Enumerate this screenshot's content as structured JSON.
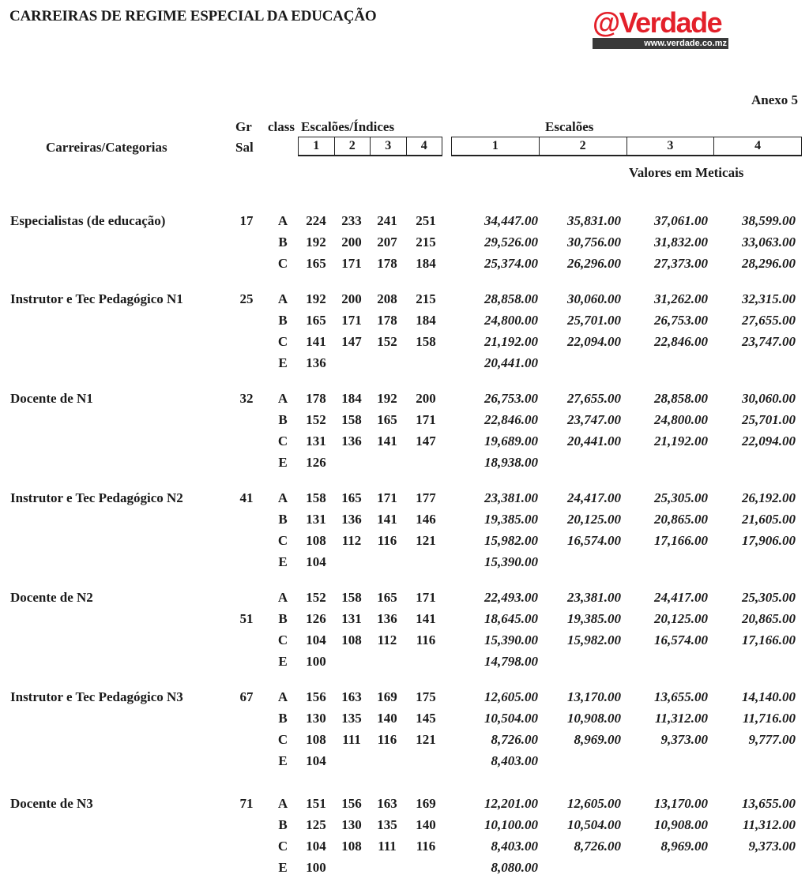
{
  "title": "CARREIRAS DE REGIME ESPECIAL DA EDUCAÇÃO",
  "logo": {
    "text": "@Verdade",
    "url": "www.verdade.co.mz"
  },
  "annex": "Anexo 5",
  "headers": {
    "category": "Carreiras/Categorias",
    "gr": "Gr",
    "sal": "Sal",
    "class": "class",
    "indices": "Escalões/Índices",
    "escaloes": "Escalões",
    "index_cols": [
      "1",
      "2",
      "3",
      "4"
    ],
    "value_cols": [
      "1",
      "2",
      "3",
      "4"
    ],
    "currency_note": "Valores em Meticais"
  },
  "groups": [
    {
      "name": "Especialistas (de educação)",
      "gr": "17",
      "gr_row": 0,
      "rows": [
        {
          "class": "A",
          "indices": [
            "224",
            "233",
            "241",
            "251"
          ],
          "values": [
            "34,447.00",
            "35,831.00",
            "37,061.00",
            "38,599.00"
          ]
        },
        {
          "class": "B",
          "indices": [
            "192",
            "200",
            "207",
            "215"
          ],
          "values": [
            "29,526.00",
            "30,756.00",
            "31,832.00",
            "33,063.00"
          ]
        },
        {
          "class": "C",
          "indices": [
            "165",
            "171",
            "178",
            "184"
          ],
          "values": [
            "25,374.00",
            "26,296.00",
            "27,373.00",
            "28,296.00"
          ]
        }
      ]
    },
    {
      "name": "Instrutor e Tec Pedagógico  N1",
      "gr": "25",
      "gr_row": 0,
      "rows": [
        {
          "class": "A",
          "indices": [
            "192",
            "200",
            "208",
            "215"
          ],
          "values": [
            "28,858.00",
            "30,060.00",
            "31,262.00",
            "32,315.00"
          ]
        },
        {
          "class": "B",
          "indices": [
            "165",
            "171",
            "178",
            "184"
          ],
          "values": [
            "24,800.00",
            "25,701.00",
            "26,753.00",
            "27,655.00"
          ]
        },
        {
          "class": "C",
          "indices": [
            "141",
            "147",
            "152",
            "158"
          ],
          "values": [
            "21,192.00",
            "22,094.00",
            "22,846.00",
            "23,747.00"
          ]
        },
        {
          "class": "E",
          "indices": [
            "136"
          ],
          "values": [
            "20,441.00"
          ]
        }
      ]
    },
    {
      "name": " Docente de N1",
      "gr": "32",
      "gr_row": 0,
      "rows": [
        {
          "class": "A",
          "indices": [
            "178",
            "184",
            "192",
            "200"
          ],
          "values": [
            "26,753.00",
            "27,655.00",
            "28,858.00",
            "30,060.00"
          ]
        },
        {
          "class": "B",
          "indices": [
            "152",
            "158",
            "165",
            "171"
          ],
          "values": [
            "22,846.00",
            "23,747.00",
            "24,800.00",
            "25,701.00"
          ]
        },
        {
          "class": "C",
          "indices": [
            "131",
            "136",
            "141",
            "147"
          ],
          "values": [
            "19,689.00",
            "20,441.00",
            "21,192.00",
            "22,094.00"
          ]
        },
        {
          "class": "E",
          "indices": [
            "126"
          ],
          "values": [
            "18,938.00"
          ]
        }
      ]
    },
    {
      "name": "Instrutor e Tec Pedagógico  N2",
      "gr": "41",
      "gr_row": 0,
      "rows": [
        {
          "class": "A",
          "indices": [
            "158",
            "165",
            "171",
            "177"
          ],
          "values": [
            "23,381.00",
            "24,417.00",
            "25,305.00",
            "26,192.00"
          ]
        },
        {
          "class": "B",
          "indices": [
            "131",
            "136",
            "141",
            "146"
          ],
          "values": [
            "19,385.00",
            "20,125.00",
            "20,865.00",
            "21,605.00"
          ]
        },
        {
          "class": "C",
          "indices": [
            "108",
            "112",
            "116",
            "121"
          ],
          "values": [
            "15,982.00",
            "16,574.00",
            "17,166.00",
            "17,906.00"
          ]
        },
        {
          "class": "E",
          "indices": [
            "104"
          ],
          "values": [
            "15,390.00"
          ]
        }
      ]
    },
    {
      "name": "Docente de N2",
      "gr": "51",
      "gr_row": 1,
      "rows": [
        {
          "class": "A",
          "indices": [
            "152",
            "158",
            "165",
            "171"
          ],
          "values": [
            "22,493.00",
            "23,381.00",
            "24,417.00",
            "25,305.00"
          ]
        },
        {
          "class": "B",
          "indices": [
            "126",
            "131",
            "136",
            "141"
          ],
          "values": [
            "18,645.00",
            "19,385.00",
            "20,125.00",
            "20,865.00"
          ]
        },
        {
          "class": "C",
          "indices": [
            "104",
            "108",
            "112",
            "116"
          ],
          "values": [
            "15,390.00",
            "15,982.00",
            "16,574.00",
            "17,166.00"
          ]
        },
        {
          "class": "E",
          "indices": [
            "100"
          ],
          "values": [
            "14,798.00"
          ]
        }
      ]
    },
    {
      "name": "Instrutor e Tec Pedagógico  N3",
      "gr": "67",
      "gr_row": 0,
      "rows": [
        {
          "class": "A",
          "indices": [
            "156",
            "163",
            "169",
            "175"
          ],
          "values": [
            "12,605.00",
            "13,170.00",
            "13,655.00",
            "14,140.00"
          ]
        },
        {
          "class": "B",
          "indices": [
            "130",
            "135",
            "140",
            "145"
          ],
          "values": [
            "10,504.00",
            "10,908.00",
            "11,312.00",
            "11,716.00"
          ]
        },
        {
          "class": "C",
          "indices": [
            "108",
            "111",
            "116",
            "121"
          ],
          "values": [
            "8,726.00",
            "8,969.00",
            "9,373.00",
            "9,777.00"
          ]
        },
        {
          "class": "E",
          "indices": [
            "104"
          ],
          "values": [
            "8,403.00"
          ]
        }
      ]
    },
    {
      "name": "Docente de N3",
      "gr": "71",
      "gr_row": 0,
      "rows": [
        {
          "class": "A",
          "indices": [
            "151",
            "156",
            "163",
            "169"
          ],
          "values": [
            "12,201.00",
            "12,605.00",
            "13,170.00",
            "13,655.00"
          ]
        },
        {
          "class": "B",
          "indices": [
            "125",
            "130",
            "135",
            "140"
          ],
          "values": [
            "10,100.00",
            "10,504.00",
            "10,908.00",
            "11,312.00"
          ]
        },
        {
          "class": "C",
          "indices": [
            "104",
            "108",
            "111",
            "116"
          ],
          "values": [
            "8,403.00",
            "8,726.00",
            "8,969.00",
            "9,373.00"
          ]
        },
        {
          "class": "E",
          "indices": [
            "100"
          ],
          "values": [
            "8,080.00"
          ]
        }
      ]
    }
  ]
}
